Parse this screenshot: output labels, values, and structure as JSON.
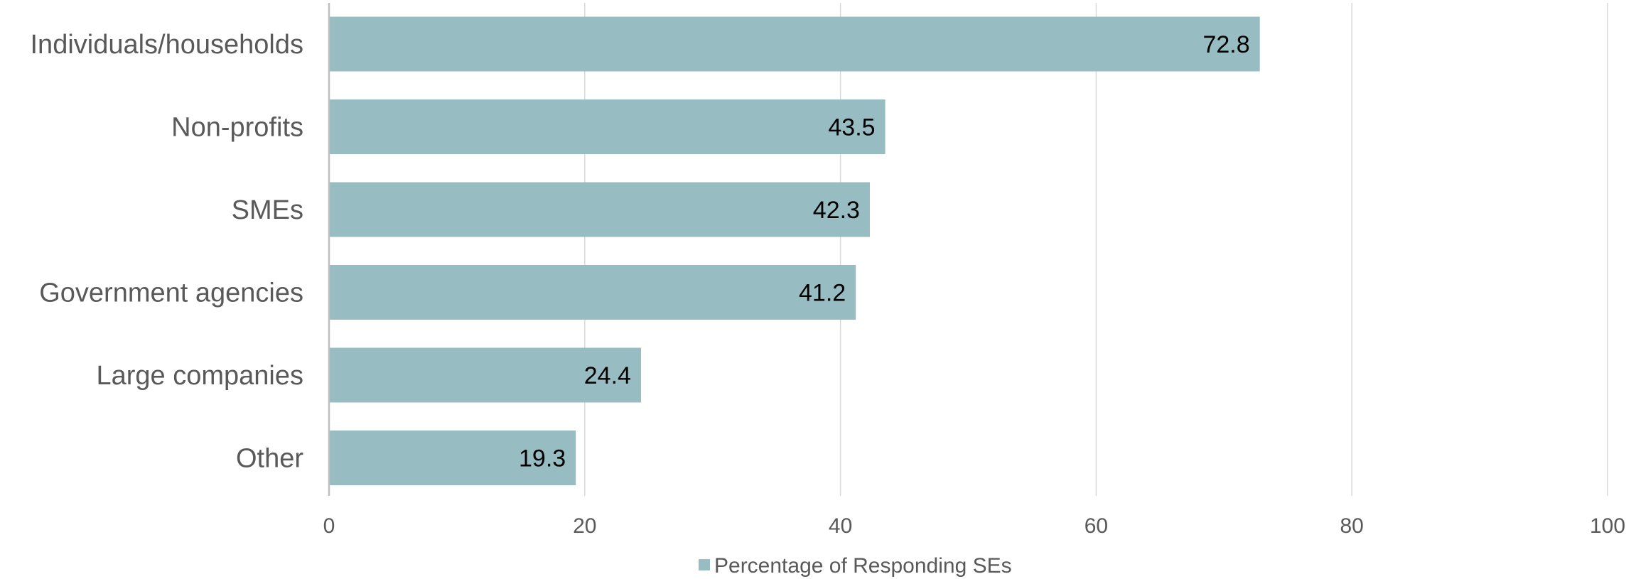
{
  "chart_data": {
    "type": "bar",
    "orientation": "horizontal",
    "categories": [
      "Individuals/households",
      "Non-profits",
      "SMEs",
      "Government agencies",
      "Large companies",
      "Other"
    ],
    "series": [
      {
        "name": "Percentage of Responding SEs",
        "values": [
          72.8,
          43.5,
          42.3,
          41.2,
          24.4,
          19.3
        ],
        "color": "#97bcc2"
      }
    ],
    "xlim": [
      0,
      100
    ],
    "xticks": [
      "0",
      "20",
      "40",
      "60",
      "80",
      "100"
    ],
    "grid": true,
    "legend_position": "bottom",
    "data_labels": true
  }
}
